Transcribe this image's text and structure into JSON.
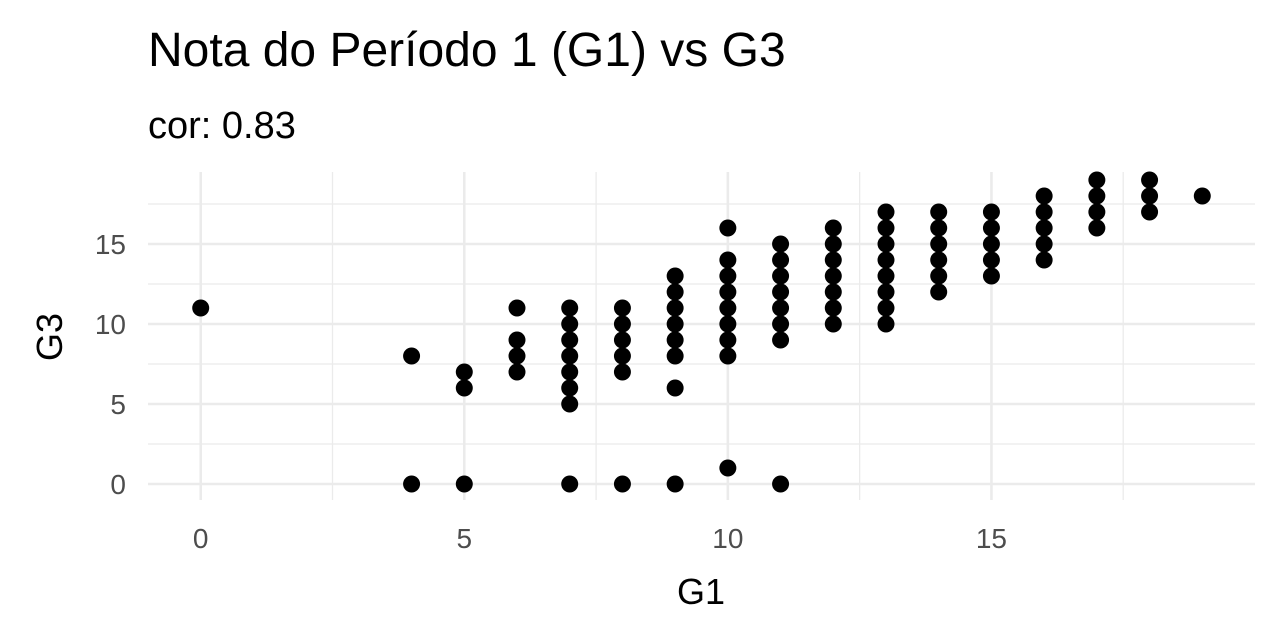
{
  "chart_data": {
    "type": "scatter",
    "title": "Nota do Período 1 (G1) vs  G3",
    "subtitle": "cor: 0.83",
    "xlabel": "G1",
    "ylabel": "G3",
    "xlim": [
      -1,
      20
    ],
    "ylim": [
      -1,
      19.5
    ],
    "x_ticks": [
      0,
      5,
      10,
      15
    ],
    "y_ticks": [
      0,
      5,
      10,
      15
    ],
    "x_tick_labels": [
      "0",
      "5",
      "10",
      "15"
    ],
    "y_tick_labels": [
      "0",
      "5",
      "10",
      "15"
    ],
    "grid": true,
    "point_color": "#000000",
    "points": [
      {
        "x": 0,
        "y": 11
      },
      {
        "x": 4,
        "y": 8
      },
      {
        "x": 4,
        "y": 0
      },
      {
        "x": 5,
        "y": 7
      },
      {
        "x": 5,
        "y": 6
      },
      {
        "x": 5,
        "y": 0
      },
      {
        "x": 6,
        "y": 11
      },
      {
        "x": 6,
        "y": 9
      },
      {
        "x": 6,
        "y": 8
      },
      {
        "x": 6,
        "y": 7
      },
      {
        "x": 7,
        "y": 11
      },
      {
        "x": 7,
        "y": 10
      },
      {
        "x": 7,
        "y": 9
      },
      {
        "x": 7,
        "y": 8
      },
      {
        "x": 7,
        "y": 7
      },
      {
        "x": 7,
        "y": 6
      },
      {
        "x": 7,
        "y": 5
      },
      {
        "x": 7,
        "y": 0
      },
      {
        "x": 8,
        "y": 11
      },
      {
        "x": 8,
        "y": 10
      },
      {
        "x": 8,
        "y": 9
      },
      {
        "x": 8,
        "y": 8
      },
      {
        "x": 8,
        "y": 7
      },
      {
        "x": 8,
        "y": 0
      },
      {
        "x": 9,
        "y": 13
      },
      {
        "x": 9,
        "y": 12
      },
      {
        "x": 9,
        "y": 11
      },
      {
        "x": 9,
        "y": 10
      },
      {
        "x": 9,
        "y": 9
      },
      {
        "x": 9,
        "y": 8
      },
      {
        "x": 9,
        "y": 6
      },
      {
        "x": 9,
        "y": 0
      },
      {
        "x": 10,
        "y": 16
      },
      {
        "x": 10,
        "y": 14
      },
      {
        "x": 10,
        "y": 13
      },
      {
        "x": 10,
        "y": 12
      },
      {
        "x": 10,
        "y": 11
      },
      {
        "x": 10,
        "y": 10
      },
      {
        "x": 10,
        "y": 9
      },
      {
        "x": 10,
        "y": 8
      },
      {
        "x": 10,
        "y": 1
      },
      {
        "x": 11,
        "y": 15
      },
      {
        "x": 11,
        "y": 14
      },
      {
        "x": 11,
        "y": 13
      },
      {
        "x": 11,
        "y": 12
      },
      {
        "x": 11,
        "y": 11
      },
      {
        "x": 11,
        "y": 10
      },
      {
        "x": 11,
        "y": 9
      },
      {
        "x": 11,
        "y": 0
      },
      {
        "x": 12,
        "y": 16
      },
      {
        "x": 12,
        "y": 15
      },
      {
        "x": 12,
        "y": 14
      },
      {
        "x": 12,
        "y": 13
      },
      {
        "x": 12,
        "y": 12
      },
      {
        "x": 12,
        "y": 11
      },
      {
        "x": 12,
        "y": 10
      },
      {
        "x": 13,
        "y": 17
      },
      {
        "x": 13,
        "y": 16
      },
      {
        "x": 13,
        "y": 15
      },
      {
        "x": 13,
        "y": 14
      },
      {
        "x": 13,
        "y": 13
      },
      {
        "x": 13,
        "y": 12
      },
      {
        "x": 13,
        "y": 11
      },
      {
        "x": 13,
        "y": 10
      },
      {
        "x": 14,
        "y": 17
      },
      {
        "x": 14,
        "y": 16
      },
      {
        "x": 14,
        "y": 15
      },
      {
        "x": 14,
        "y": 14
      },
      {
        "x": 14,
        "y": 13
      },
      {
        "x": 14,
        "y": 12
      },
      {
        "x": 15,
        "y": 17
      },
      {
        "x": 15,
        "y": 16
      },
      {
        "x": 15,
        "y": 15
      },
      {
        "x": 15,
        "y": 14
      },
      {
        "x": 15,
        "y": 13
      },
      {
        "x": 16,
        "y": 18
      },
      {
        "x": 16,
        "y": 17
      },
      {
        "x": 16,
        "y": 16
      },
      {
        "x": 16,
        "y": 15
      },
      {
        "x": 16,
        "y": 14
      },
      {
        "x": 17,
        "y": 19
      },
      {
        "x": 17,
        "y": 18
      },
      {
        "x": 17,
        "y": 17
      },
      {
        "x": 17,
        "y": 16
      },
      {
        "x": 18,
        "y": 19
      },
      {
        "x": 18,
        "y": 18
      },
      {
        "x": 18,
        "y": 17
      },
      {
        "x": 19,
        "y": 18
      }
    ]
  }
}
